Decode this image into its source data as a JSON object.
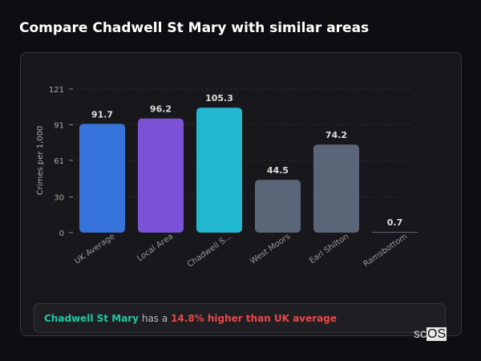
{
  "title": "Compare Chadwell St Mary with similar areas",
  "chart_data": {
    "type": "bar",
    "categories": [
      "UK Average",
      "Local Area",
      "Chadwell S...",
      "West Moors",
      "Earl Shilton",
      "Ramsbottom"
    ],
    "values": [
      91.7,
      96.2,
      105.3,
      44.5,
      74.2,
      0.7
    ],
    "colors": [
      "#3674db",
      "#7b52d6",
      "#22b8cf",
      "#5b6578",
      "#5b6578",
      "#5b6578"
    ],
    "ylabel": "Crimes per 1,000",
    "yticks": [
      0,
      30,
      61,
      91,
      121
    ],
    "ylim": [
      0,
      121
    ],
    "grid": true
  },
  "summary": {
    "area": "Chadwell St Mary",
    "middle": "has a",
    "result": "14.8% higher than UK average"
  },
  "logo": {
    "a": "sc",
    "b": "OS"
  }
}
